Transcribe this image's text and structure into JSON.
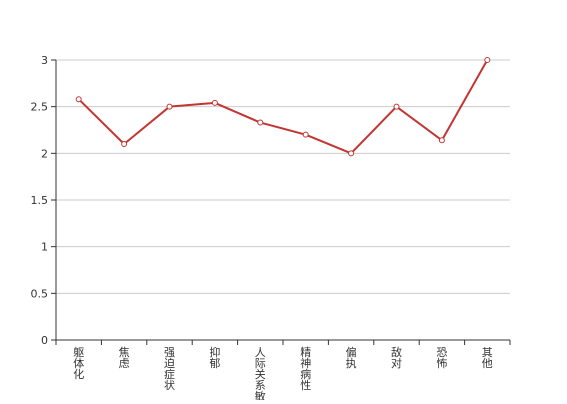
{
  "chart_data": {
    "type": "line",
    "title": "",
    "xlabel": "",
    "ylabel": "",
    "categories": [
      "躯体化",
      "焦虑",
      "强迫症状",
      "抑郁",
      "人际关系敏感",
      "精神病性",
      "偏执",
      "敌对",
      "恐怖",
      "其他"
    ],
    "series": [
      {
        "name": "",
        "values": [
          2.58,
          2.1,
          2.5,
          2.54,
          2.33,
          2.2,
          2.0,
          2.5,
          2.14,
          3.0
        ],
        "color": "#c23531"
      }
    ],
    "ylim": [
      0,
      3
    ],
    "yticks": [
      "0",
      "0.5",
      "1",
      "1.5",
      "2",
      "2.5",
      "3"
    ],
    "grid": true,
    "legend": "none",
    "colors": {
      "line": "#c23531",
      "grid": "#cccccc",
      "axis": "#333333",
      "marker_fill": "#ffffff"
    }
  }
}
